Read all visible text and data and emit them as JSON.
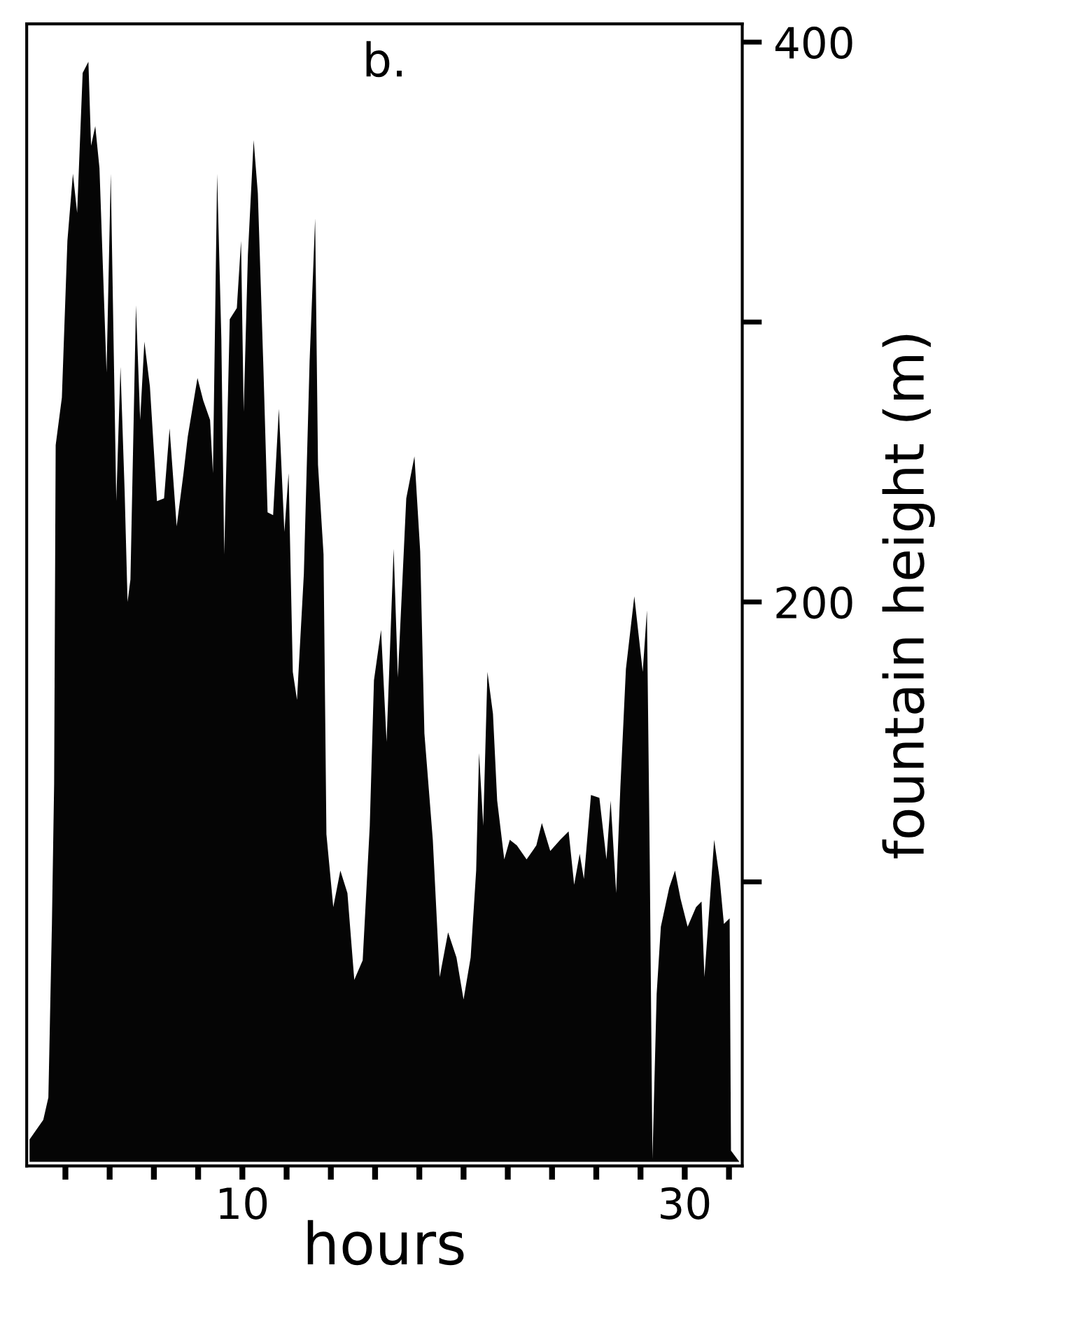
{
  "chart_data": {
    "type": "area",
    "title": "b.",
    "xlabel": "hours",
    "ylabel": "fountain height (m)",
    "x": [
      0.38,
      1.0,
      1.23,
      1.3,
      1.39,
      1.49,
      1.56,
      1.84,
      2.09,
      2.34,
      2.53,
      2.78,
      3.04,
      3.16,
      3.35,
      3.54,
      3.86,
      4.05,
      4.3,
      4.49,
      4.68,
      4.81,
      4.94,
      5.19,
      5.38,
      5.57,
      5.82,
      6.14,
      6.46,
      6.71,
      7.03,
      7.34,
      7.53,
      7.97,
      8.23,
      8.54,
      8.67,
      8.86,
      9.05,
      9.18,
      9.43,
      9.75,
      9.94,
      10.06,
      10.25,
      10.51,
      10.7,
      10.95,
      11.14,
      11.39,
      11.65,
      11.9,
      12.09,
      12.28,
      12.47,
      12.78,
      13.04,
      13.29,
      13.42,
      13.67,
      13.8,
      14.11,
      14.43,
      14.75,
      15.06,
      15.44,
      15.76,
      15.95,
      16.27,
      16.52,
      16.84,
      17.03,
      17.41,
      17.78,
      18.04,
      18.23,
      18.61,
      18.92,
      19.3,
      19.68,
      20.0,
      20.32,
      20.57,
      20.7,
      20.89,
      21.08,
      21.33,
      21.52,
      21.84,
      22.09,
      22.41,
      22.85,
      23.29,
      23.54,
      23.92,
      24.37,
      24.75,
      25.0,
      25.25,
      25.44,
      25.76,
      26.14,
      26.46,
      26.65,
      26.9,
      27.09,
      27.34,
      27.53,
      27.72,
      28.1,
      28.29,
      28.42,
      28.54,
      28.73,
      28.92,
      29.3,
      29.56,
      29.81,
      30.13,
      30.51,
      30.76,
      30.89,
      31.33,
      31.58,
      31.77,
      32.03,
      32.09,
      32.47
    ],
    "values": [
      8,
      15,
      23,
      50,
      85,
      135,
      256,
      273,
      329,
      353,
      339,
      389,
      393,
      363,
      370,
      355,
      282,
      353,
      236,
      284,
      239,
      200,
      208,
      306,
      265,
      293,
      277,
      236,
      237,
      262,
      227,
      246,
      259,
      280,
      272,
      265,
      246,
      353,
      294,
      217,
      301,
      305,
      329,
      268,
      324,
      365,
      346,
      284,
      232,
      231,
      269,
      225,
      246,
      175,
      165,
      210,
      286,
      337,
      249,
      217,
      117,
      91,
      104,
      96,
      65,
      72,
      120,
      172,
      190,
      150,
      219,
      173,
      237,
      252,
      218,
      153,
      115,
      66,
      82,
      73,
      58,
      73,
      104,
      146,
      120,
      175,
      160,
      129,
      108,
      115,
      113,
      108,
      113,
      121,
      111,
      115,
      118,
      99,
      110,
      101,
      131,
      130,
      108,
      129,
      96,
      134,
      176,
      189,
      202,
      175,
      197,
      106,
      1,
      60,
      84,
      98,
      104,
      94,
      84,
      91,
      93,
      66,
      115,
      101,
      85,
      87,
      4,
      0
    ],
    "color": "#050505",
    "xlim": [
      0.25,
      32.6
    ],
    "ylim": [
      -1.5,
      406.5
    ],
    "xticks": [
      {
        "value": 2,
        "label": null
      },
      {
        "value": 4,
        "label": null
      },
      {
        "value": 6,
        "label": null
      },
      {
        "value": 8,
        "label": null
      },
      10,
      {
        "value": 12,
        "label": null
      },
      {
        "value": 14,
        "label": null
      },
      {
        "value": 16,
        "label": null
      },
      {
        "value": 18,
        "label": null
      },
      {
        "value": 20,
        "label": null
      },
      {
        "value": 22,
        "label": null
      },
      {
        "value": 24,
        "label": null
      },
      {
        "value": 26,
        "label": null
      },
      {
        "value": 28,
        "label": null
      },
      30,
      {
        "value": 32,
        "label": null
      }
    ],
    "yticks": [
      {
        "value": 100,
        "label": null
      },
      200,
      {
        "value": 300,
        "label": null
      },
      400
    ],
    "grid": false,
    "legend": false
  }
}
